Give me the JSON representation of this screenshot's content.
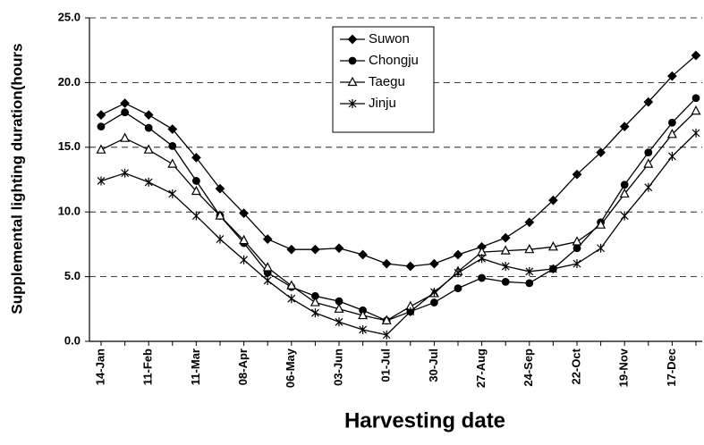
{
  "chart_data": {
    "type": "line",
    "x_label": "Harvesting date",
    "y_label": "Supplemental lighting duration(hours",
    "categories": [
      "14-Jan",
      null,
      "11-Feb",
      null,
      "11-Mar",
      null,
      "08-Apr",
      null,
      "06-May",
      null,
      "03-Jun",
      null,
      "01-Jul",
      null,
      "30-Jul",
      null,
      "27-Aug",
      null,
      "24-Sep",
      null,
      "22-Oct",
      null,
      "19-Nov",
      null,
      "17-Dec",
      null
    ],
    "series": [
      {
        "name": "Suwon",
        "color": "#000000",
        "marker": "diamond",
        "values": [
          17.5,
          18.4,
          17.5,
          16.4,
          14.2,
          11.8,
          9.9,
          7.9,
          7.1,
          7.1,
          7.2,
          6.7,
          6.0,
          5.8,
          6.0,
          6.7,
          7.3,
          8.0,
          9.2,
          10.9,
          12.9,
          14.6,
          16.6,
          18.5,
          20.5,
          22.1
        ]
      },
      {
        "name": "Chongju",
        "color": "#000000",
        "marker": "circle",
        "values": [
          16.6,
          17.7,
          16.5,
          15.1,
          12.4,
          9.7,
          7.6,
          5.3,
          4.2,
          3.5,
          3.1,
          2.4,
          1.6,
          2.3,
          3.0,
          4.1,
          4.9,
          4.6,
          4.5,
          5.6,
          7.2,
          9.2,
          12.1,
          14.6,
          16.9,
          18.8
        ]
      },
      {
        "name": "Taegu",
        "color": "#000000",
        "marker": "triangle",
        "values": [
          14.8,
          15.7,
          14.8,
          13.7,
          11.6,
          9.7,
          7.8,
          5.7,
          4.3,
          3.0,
          2.5,
          2.0,
          1.6,
          2.7,
          3.7,
          5.4,
          6.9,
          7.0,
          7.1,
          7.3,
          7.7,
          9.0,
          11.4,
          13.7,
          16.0,
          17.8
        ]
      },
      {
        "name": "Jinju",
        "color": "#000000",
        "marker": "asterisk",
        "values": [
          12.4,
          13.0,
          12.3,
          11.4,
          9.7,
          7.9,
          6.3,
          4.7,
          3.3,
          2.2,
          1.5,
          0.9,
          0.5,
          2.3,
          3.8,
          5.3,
          6.4,
          5.8,
          5.4,
          5.6,
          6.0,
          7.2,
          9.7,
          11.9,
          14.3,
          16.1
        ]
      }
    ],
    "ylim": [
      0,
      25
    ],
    "yticks": [
      {
        "value": 0,
        "label": "0.0"
      },
      {
        "value": 5,
        "label": "5.0"
      },
      {
        "value": 10,
        "label": "10.0"
      },
      {
        "value": 15,
        "label": "15.0"
      },
      {
        "value": 20,
        "label": "20.0"
      },
      {
        "value": 25,
        "label": "25.0"
      }
    ],
    "grid": true,
    "legend": "top-center"
  }
}
